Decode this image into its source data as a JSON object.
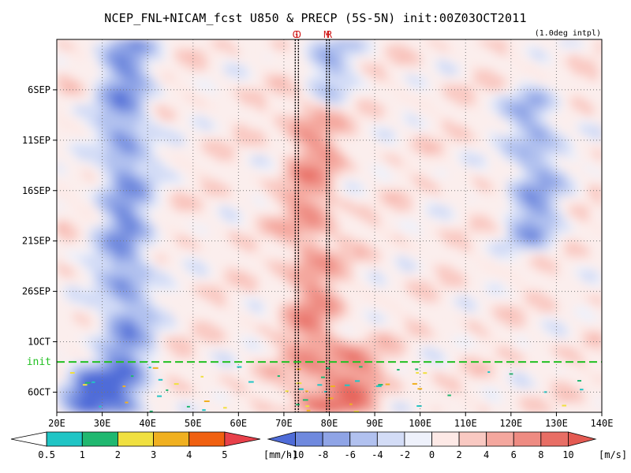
{
  "title": "NCEP_FNL+NICAM_fcst U850 & PRECP (5S-5N) init:00Z03OCT2011",
  "note": "(1.0deg intpl)",
  "chart_data": {
    "type": "heatmap",
    "xlim": [
      20,
      140
    ],
    "x_ticks": [
      20,
      30,
      40,
      50,
      60,
      70,
      80,
      90,
      100,
      110,
      120,
      130,
      140
    ],
    "x_tick_labels": [
      "20E",
      "30E",
      "40E",
      "50E",
      "60E",
      "70E",
      "80E",
      "90E",
      "100E",
      "110E",
      "120E",
      "130E",
      "140E"
    ],
    "ylim": [
      "2011-09-01",
      "2011-10-08"
    ],
    "y_ticks": [
      "2011-09-06",
      "2011-09-11",
      "2011-09-16",
      "2011-09-21",
      "2011-09-26",
      "2011-10-01",
      "2011-10-06"
    ],
    "y_tick_labels": [
      "6SEP",
      "11SEP",
      "16SEP",
      "21SEP",
      "26SEP",
      "1OCT",
      "6OCT"
    ],
    "init_line": {
      "date": "2011-10-03",
      "label": "init"
    },
    "vertical_lines": [
      {
        "label": "G",
        "lon": 72.5
      },
      {
        "label": "D",
        "lon": 73.2
      },
      {
        "label": "M",
        "lon": 79.4
      },
      {
        "label": "R",
        "lon": 80.0
      }
    ],
    "wind_colorbar": {
      "levels": [
        -10,
        -8,
        -6,
        -4,
        -2,
        0,
        2,
        4,
        6,
        8,
        10
      ],
      "unit": "[m/s]",
      "colors": [
        "#4f6cd8",
        "#6f89de",
        "#8fa4e6",
        "#b1c1ef",
        "#d3dcf6",
        "#eef1fb",
        "#fde9e6",
        "#f9c9c2",
        "#f4a79e",
        "#ee8b82",
        "#e86e65",
        "#e45a52"
      ]
    },
    "precip_colorbar": {
      "levels": [
        0.5,
        1,
        2,
        3,
        4,
        5
      ],
      "unit": "[mm/h]",
      "colors": [
        "#ffffff",
        "#20c5c5",
        "#20b870",
        "#f0e040",
        "#f0b020",
        "#f06010",
        "#e8404a"
      ]
    },
    "features": [
      {
        "kind": "easterly",
        "lon": 35,
        "value": -8,
        "period": [
          "2011-09-01",
          "2011-10-08"
        ]
      },
      {
        "kind": "easterly",
        "lon": 125,
        "value": -7,
        "period": [
          "2011-09-08",
          "2011-09-20"
        ]
      },
      {
        "kind": "easterly",
        "lon": 80,
        "value": -5,
        "period": [
          "2011-09-01",
          "2011-09-06"
        ]
      },
      {
        "kind": "westerly",
        "lon": 76,
        "value": 5,
        "period": [
          "2011-09-08",
          "2011-10-08"
        ]
      },
      {
        "kind": "westerly",
        "lon": 85,
        "value": 6,
        "period": [
          "2011-10-03",
          "2011-10-08"
        ]
      },
      {
        "kind": "easterly",
        "lon": 27,
        "value": -10,
        "period": [
          "2011-10-05",
          "2011-10-08"
        ]
      }
    ]
  }
}
